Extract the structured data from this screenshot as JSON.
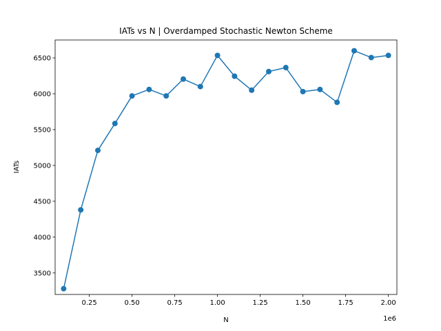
{
  "chart_data": {
    "type": "line",
    "title": "IATs vs N | Overdamped Stochastic Newton Scheme",
    "xlabel": "N",
    "ylabel": "IATs",
    "x_offset_label": "1e6",
    "xlim": [
      0.05,
      2.05
    ],
    "ylim": [
      3200,
      6750
    ],
    "x_ticks": [
      0.25,
      0.5,
      0.75,
      1.0,
      1.25,
      1.5,
      1.75,
      2.0
    ],
    "x_tick_labels": [
      "0.25",
      "0.50",
      "0.75",
      "1.00",
      "1.25",
      "1.50",
      "1.75",
      "2.00"
    ],
    "y_ticks": [
      3500,
      4000,
      4500,
      5000,
      5500,
      6000,
      6500
    ],
    "y_tick_labels": [
      "3500",
      "4000",
      "4500",
      "5000",
      "5500",
      "6000",
      "6500"
    ],
    "grid": false,
    "series": [
      {
        "color": "#1f77b4",
        "marker": "circle",
        "x": [
          0.1,
          0.2,
          0.3,
          0.4,
          0.5,
          0.6,
          0.7,
          0.8,
          0.9,
          1.0,
          1.1,
          1.2,
          1.3,
          1.4,
          1.5,
          1.6,
          1.7,
          1.8,
          1.9,
          2.0
        ],
        "y": [
          3280,
          4380,
          5210,
          5585,
          5970,
          6060,
          5970,
          6205,
          6100,
          6535,
          6245,
          6050,
          6310,
          6365,
          6030,
          6060,
          5880,
          6600,
          6505,
          6535
        ]
      }
    ]
  }
}
